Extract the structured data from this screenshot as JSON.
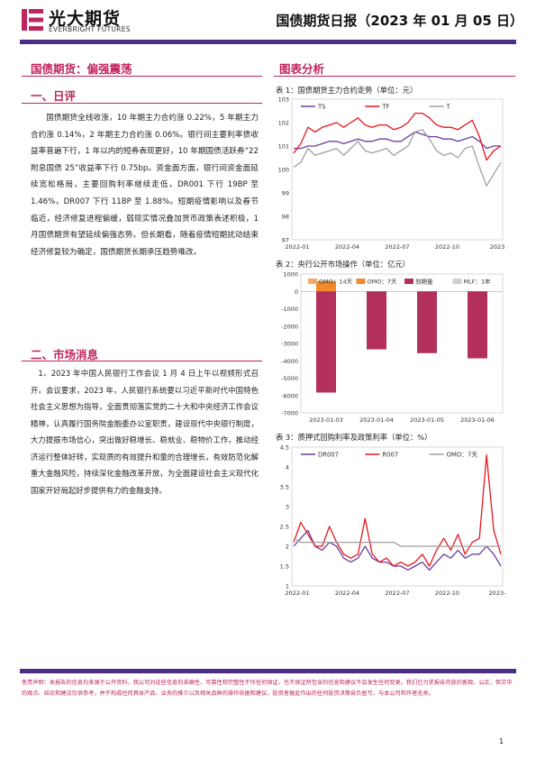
{
  "header": {
    "brand_cn": "光大期货",
    "brand_en": "EVERBRIGHT FUTURES",
    "report_title": "国债期货日报（2023 年 01 月 05 日）"
  },
  "left": {
    "headline": "国债期货：偏强震荡",
    "section1_title": "一、日评",
    "section1_body": "国债期货全线收涨，10 年期主力合约涨 0.22%，5 年期主力合约涨 0.14%，2 年期主力合约涨 0.06%。银行间主要利率债收益率普遍下行，1 年以内的短券表现更好，10 年期国债活跃券“22 附息国债 25”收益率下行 0.75bp。资金面方面，银行间资金面延续宽松格局，主要回购利率继续走低，DR001 下行 19BP 至 1.46%，DR007 下行 11BP 至 1.88%。短期疫情影响以及春节临近，经济修复进程偏缓，弱现实情况叠加货币政策表述积极，1 月国债期货有望延续偏强态势。但长期看，随着疫情短期扰动结束经济修复较为确定，国债期货长期承压趋势难改。",
    "section2_title": "二、市场消息",
    "section2_body": "1、2023 年中国人民银行工作会议 1 月 4 日上午以视频形式召开。会议要求，2023 年，人民银行系统要以习近平新时代中国特色社会主义思想为指导，全面贯彻落实党的二十大和中央经济工作会议精神，认真履行国务院金融委办公室职责，建设现代中央银行制度，大力提振市场信心，突出做好稳增长、稳就业、稳物价工作，推动经济运行整体好转，实现质的有效提升和量的合理增长，有效防范化解重大金融风险，持续深化金融改革开放，为全面建设社会主义现代化国家开好局起好步提供有力的金融支持。"
  },
  "right": {
    "section_title": "图表分析",
    "chart1_caption": "表 1：国债期货主力合约走势（单位：元）",
    "chart2_caption": "表 2：央行公开市场操作（单位：亿元）",
    "chart3_caption": "表 3：质押式回购利率及政策利率（单位：%）"
  },
  "colors": {
    "purple": "#4b2d83",
    "magenta": "#c0245e",
    "ts": "#6a3ea1",
    "tf": "#e5181f",
    "t": "#a0a0a0",
    "omo14": "#f6a96b",
    "omo7": "#f08a2c",
    "maturity": "#b3305c",
    "mlf": "#cfcfcf"
  },
  "chart_data": [
    {
      "type": "line",
      "title": "表 1：国债期货主力合约走势（单位：元）",
      "x_ticks": [
        "2022-01",
        "2022-04",
        "2022-07",
        "2022-10",
        "2023"
      ],
      "ylim": [
        97,
        103
      ],
      "y_ticks": [
        97,
        98,
        99,
        100,
        101,
        102,
        103
      ],
      "legend": "top",
      "series": [
        {
          "name": "TS",
          "values": [
            100.9,
            100.9,
            101.0,
            101.0,
            101.1,
            101.2,
            101.2,
            101.1,
            101.2,
            101.3,
            101.2,
            101.2,
            101.3,
            101.3,
            101.2,
            101.2,
            101.4,
            101.6,
            101.5,
            101.4,
            101.4,
            101.3,
            101.3,
            101.2,
            101.3,
            101.4,
            101.2,
            100.9,
            101.0,
            101.0
          ]
        },
        {
          "name": "TF",
          "values": [
            100.7,
            101.1,
            101.8,
            101.6,
            101.8,
            101.9,
            102.0,
            101.8,
            102.0,
            102.2,
            101.9,
            101.8,
            101.9,
            101.9,
            101.7,
            101.8,
            102.0,
            102.4,
            102.4,
            102.2,
            101.9,
            101.8,
            101.8,
            101.7,
            101.9,
            102.1,
            101.4,
            100.4,
            100.8,
            101.0
          ]
        },
        {
          "name": "T",
          "values": [
            100.1,
            100.3,
            100.9,
            100.6,
            100.7,
            100.8,
            100.9,
            100.6,
            100.9,
            101.2,
            100.8,
            100.7,
            100.8,
            100.9,
            100.6,
            100.8,
            101.0,
            101.6,
            101.7,
            101.3,
            100.8,
            100.6,
            100.7,
            100.5,
            100.9,
            101.0,
            100.1,
            99.3,
            99.8,
            100.3
          ]
        }
      ]
    },
    {
      "type": "bar",
      "title": "表 2：央行公开市场操作（单位：亿元）",
      "categories": [
        "2023-01-03",
        "2023-01-04",
        "2023-01-05",
        "2023-01-06"
      ],
      "ylim": [
        -7000,
        1000
      ],
      "y_ticks": [
        1000,
        0,
        -1000,
        -2000,
        -3000,
        -4000,
        -5000,
        -6000,
        -7000
      ],
      "legend": "top",
      "series": [
        {
          "name": "OMO：14天",
          "values": [
            0,
            0,
            0,
            0
          ]
        },
        {
          "name": "OMO：7天",
          "values": [
            590,
            0,
            0,
            0
          ]
        },
        {
          "name": "到期量",
          "values": [
            -5830,
            -3340,
            -3560,
            -3860
          ]
        },
        {
          "name": "MLF：1年",
          "values": [
            0,
            0,
            0,
            0
          ]
        }
      ]
    },
    {
      "type": "line",
      "title": "表 3：质押式回购利率及政策利率（单位：%）",
      "x_ticks": [
        "2022-01",
        "2022-04",
        "2022-07",
        "2022-10",
        "2023-"
      ],
      "ylim": [
        1,
        4.5
      ],
      "y_ticks": [
        1,
        1.5,
        2,
        2.5,
        3,
        3.5,
        4,
        4.5
      ],
      "legend": "top",
      "series": [
        {
          "name": "DR007",
          "values": [
            2.0,
            2.2,
            2.4,
            2.0,
            1.9,
            2.1,
            2.0,
            1.7,
            1.6,
            1.7,
            2.0,
            1.7,
            1.6,
            1.6,
            1.5,
            1.5,
            1.4,
            1.5,
            1.6,
            1.4,
            1.6,
            1.8,
            1.7,
            1.9,
            1.7,
            1.8,
            1.8,
            2.0,
            1.8,
            1.5
          ]
        },
        {
          "name": "R007",
          "values": [
            2.1,
            2.6,
            2.3,
            2.0,
            2.0,
            2.5,
            2.1,
            1.8,
            1.7,
            1.8,
            2.7,
            1.8,
            1.6,
            1.7,
            1.5,
            1.6,
            1.5,
            1.6,
            1.8,
            1.5,
            1.9,
            2.2,
            1.9,
            2.3,
            1.8,
            2.1,
            2.2,
            4.3,
            2.4,
            1.8
          ]
        },
        {
          "name": "OMO：7天",
          "values": [
            2.2,
            2.1,
            2.1,
            2.1,
            2.1,
            2.1,
            2.1,
            2.1,
            2.1,
            2.1,
            2.1,
            2.1,
            2.1,
            2.1,
            2.1,
            2.0,
            2.0,
            2.0,
            2.0,
            2.0,
            2.0,
            2.0,
            2.0,
            2.0,
            2.0,
            2.0,
            2.0,
            2.0,
            2.0,
            2.0
          ]
        }
      ]
    }
  ],
  "footer": {
    "disclaimer": "免责声明：本报告的信息均来源于公开资料，我公司对这些信息的准确性、可靠性和完整性不作任何保证，也不保证所包含的信息和建议不会发生任何变更。我们已力求报告内容的客观、公正，但文中的观点、结论和建议仅供参考，并不构成任何具体产品、业务的推介以及相关品种的操作依据和建议。投资者据此作出的任何投资决策自负盈亏，与本公司和作者无关。",
    "page_number": "1"
  }
}
